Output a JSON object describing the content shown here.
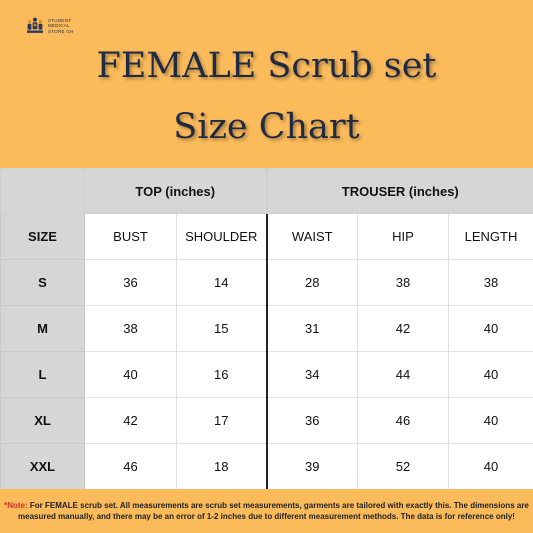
{
  "logo": {
    "line1": "STUDENT",
    "line2": "MEDICAL",
    "line3": "STORE GH"
  },
  "title": {
    "line1": "FEMALE Scrub set",
    "line2": "Size Chart"
  },
  "table": {
    "groups": {
      "top": "TOP (inches)",
      "trouser": "TROUSER (inches)"
    },
    "columns": [
      "SIZE",
      "BUST",
      "SHOULDER",
      "WAIST",
      "HIP",
      "LENGTH"
    ],
    "rows": [
      {
        "size": "S",
        "bust": "36",
        "shoulder": "14",
        "waist": "28",
        "hip": "38",
        "length": "38"
      },
      {
        "size": "M",
        "bust": "38",
        "shoulder": "15",
        "waist": "31",
        "hip": "42",
        "length": "40"
      },
      {
        "size": "L",
        "bust": "40",
        "shoulder": "16",
        "waist": "34",
        "hip": "44",
        "length": "40"
      },
      {
        "size": "XL",
        "bust": "42",
        "shoulder": "17",
        "waist": "36",
        "hip": "46",
        "length": "40"
      },
      {
        "size": "XXL",
        "bust": "46",
        "shoulder": "18",
        "waist": "39",
        "hip": "52",
        "length": "40"
      }
    ]
  },
  "footer": {
    "note_label": "*Note:",
    "note_text": " For FEMALE scrub set. All measurements are scrub set measurements, garments are tailored with exactly this. The dimensions are measured manually, and there may be an error of 1-2 inches due to different measurement methods. The data is for reference only!"
  },
  "colors": {
    "background": "#fbbb5b",
    "title": "#1f2a44",
    "header_gray": "#d6d6d6",
    "note_red": "#d0312d"
  }
}
